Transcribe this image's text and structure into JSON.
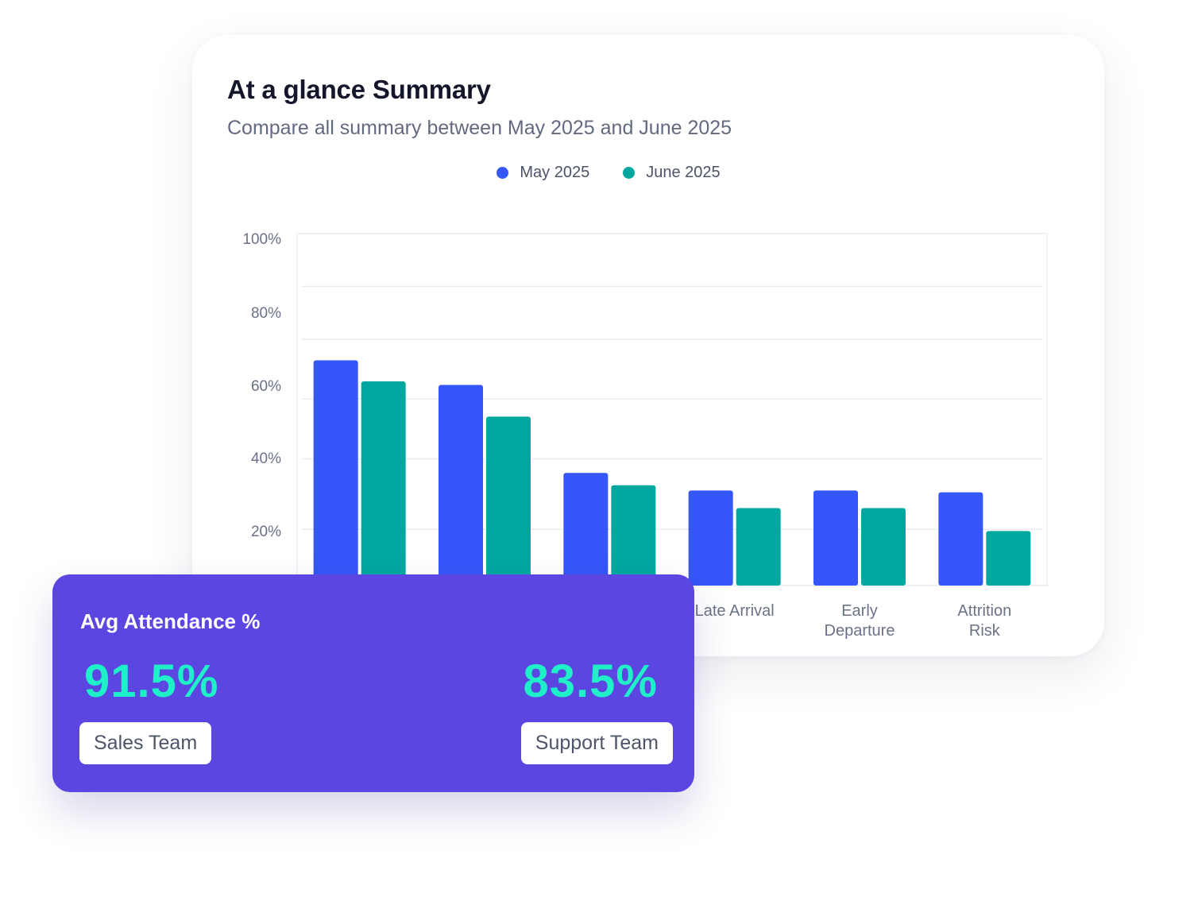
{
  "summary": {
    "title": "At a glance Summary",
    "subtitle": "Compare all summary between May 2025 and June 2025"
  },
  "colors": {
    "may": "#3556f8",
    "june": "#02a89f",
    "grid": "#e9ecf2",
    "card_purple": "#5b46e2",
    "highlight": "#1ef0c8"
  },
  "chart_data": {
    "type": "bar",
    "categories": [
      "",
      "",
      "",
      "Late Arrival",
      "Early Departure",
      "Attrition Risk"
    ],
    "category_lines": [
      [
        ""
      ],
      [
        ""
      ],
      [
        ""
      ],
      [
        "Late Arrival"
      ],
      [
        "Early",
        "Departure"
      ],
      [
        "Attrition",
        "Risk"
      ]
    ],
    "series": [
      {
        "name": "May 2025",
        "color": "#3556f8",
        "values": [
          64,
          57,
          32,
          27,
          27,
          26.5
        ]
      },
      {
        "name": "June 2025",
        "color": "#02a89f",
        "values": [
          58,
          48,
          28.5,
          22,
          22,
          15.5
        ]
      }
    ],
    "yticks": [
      "100%",
      "80%",
      "60%",
      "40%",
      "20%"
    ],
    "ylim": [
      0,
      100
    ],
    "xlabel": "",
    "ylabel": "",
    "legend_position": "top-center",
    "grid": true
  },
  "attendance": {
    "title": "Avg Attendance %",
    "sales_value": "91.5%",
    "sales_label": "Sales Team",
    "support_value": "83.5%",
    "support_label": "Support Team"
  }
}
